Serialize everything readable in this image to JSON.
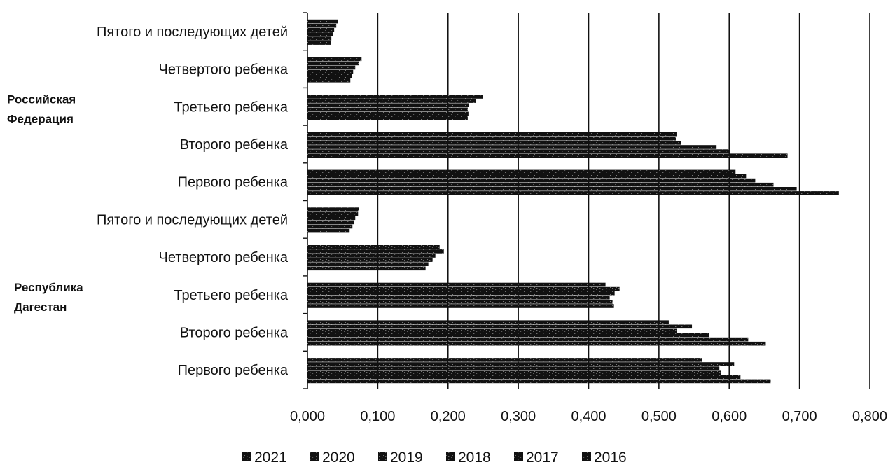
{
  "chart_data": {
    "type": "bar",
    "orientation": "horizontal",
    "title": "",
    "xlabel": "",
    "ylabel": "",
    "xlim": [
      0,
      0.8
    ],
    "x_ticks": [
      "0,000",
      "0,100",
      "0,200",
      "0,300",
      "0,400",
      "0,500",
      "0,600",
      "0,700",
      "0,800"
    ],
    "grid": "vertical",
    "legend_position": "bottom",
    "groups": [
      {
        "name": "Российская Федерация",
        "name_lines": [
          "Российская",
          "Федерация"
        ],
        "categories": [
          "Пятого и последующих детей",
          "Четвертого ребенка",
          "Третьего ребенка",
          "Второго ребенка",
          "Первого ребенка"
        ]
      },
      {
        "name": "Республика Дагестан",
        "name_lines": [
          "Республика",
          "Дагестан"
        ],
        "categories": [
          "Пятого и последующих детей",
          "Четвертого ребенка",
          "Третьего ребенка",
          "Второго ребенка",
          "Первого ребенка"
        ]
      }
    ],
    "series": [
      {
        "name": "2021",
        "values": [
          0.043,
          0.077,
          0.25,
          0.525,
          0.609,
          0.073,
          0.188,
          0.424,
          0.514,
          0.561
        ]
      },
      {
        "name": "2020",
        "values": [
          0.041,
          0.073,
          0.24,
          0.524,
          0.624,
          0.072,
          0.194,
          0.444,
          0.547,
          0.607
        ]
      },
      {
        "name": "2019",
        "values": [
          0.038,
          0.068,
          0.23,
          0.531,
          0.637,
          0.068,
          0.182,
          0.437,
          0.526,
          0.586
        ]
      },
      {
        "name": "2018",
        "values": [
          0.036,
          0.065,
          0.228,
          0.582,
          0.663,
          0.066,
          0.178,
          0.43,
          0.571,
          0.588
        ]
      },
      {
        "name": "2017",
        "values": [
          0.034,
          0.063,
          0.229,
          0.6,
          0.696,
          0.064,
          0.172,
          0.434,
          0.627,
          0.616
        ]
      },
      {
        "name": "2016",
        "values": [
          0.033,
          0.061,
          0.228,
          0.683,
          0.756,
          0.06,
          0.168,
          0.436,
          0.652,
          0.659
        ]
      }
    ]
  }
}
